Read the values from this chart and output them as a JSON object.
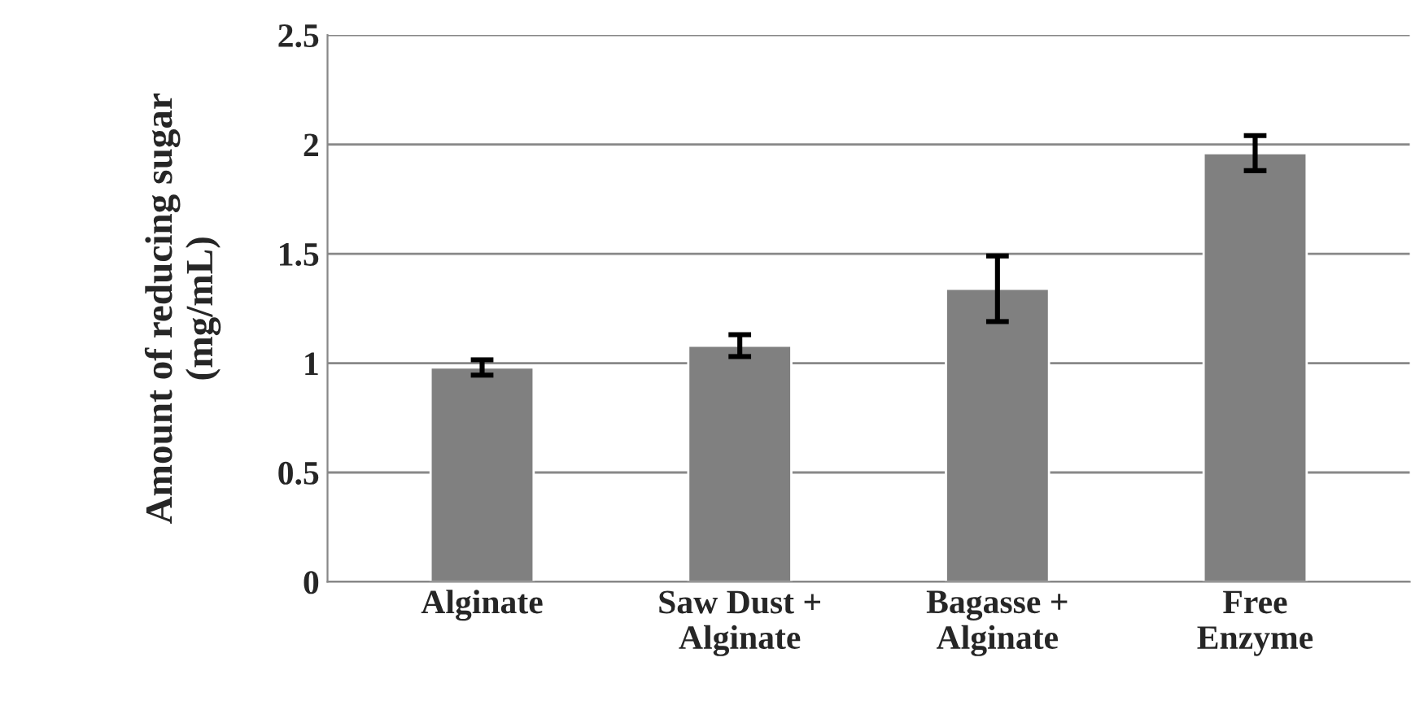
{
  "chart_data": {
    "type": "bar",
    "ylabel": "Amount of reducing sugar\n(mg/mL)",
    "categories": [
      "Alginate",
      "Saw Dust +\nAlginate",
      "Bagasse +\nAlginate",
      "Free\nEnzyme"
    ],
    "values": [
      0.98,
      1.08,
      1.34,
      1.96
    ],
    "errors": [
      0.035,
      0.05,
      0.15,
      0.08
    ],
    "color": "#808080",
    "ylim": [
      0,
      2.5
    ],
    "yticks": [
      0,
      0.5,
      1,
      1.5,
      2,
      2.5
    ],
    "grid": "y"
  }
}
